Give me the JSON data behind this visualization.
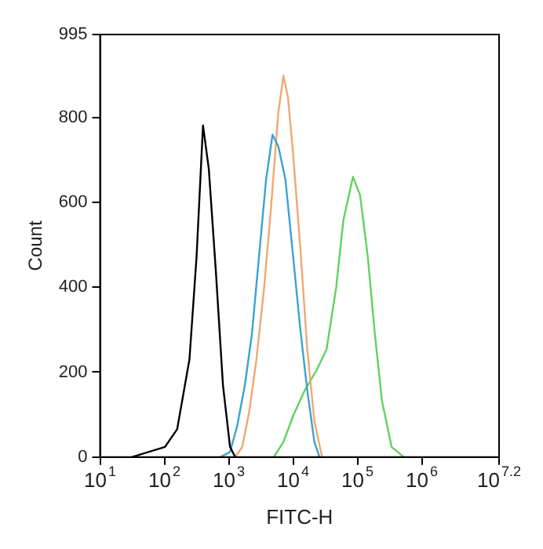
{
  "chart_data": {
    "type": "line",
    "xlabel": "FITC-H",
    "ylabel": "Count",
    "log": "x",
    "grid": false,
    "legend": false,
    "marker": "none",
    "line_style": "solid",
    "xlim": [
      10,
      15848932
    ],
    "ylim": [
      0,
      995
    ],
    "xticks": [
      {
        "value": 10,
        "label": "10$^{1}$"
      },
      {
        "value": 100,
        "label": "10$^{2}$"
      },
      {
        "value": 1000,
        "label": "10$^{3}$"
      },
      {
        "value": 10000,
        "label": "10$^{4}$"
      },
      {
        "value": 100000,
        "label": "10$^{5}$"
      },
      {
        "value": 1000000,
        "label": "10$^{6}$"
      },
      {
        "value": 15848932,
        "label": "10$^{7.2}$"
      }
    ],
    "yticks": [
      0,
      200,
      400,
      600,
      800,
      995
    ],
    "series": [
      {
        "color": "#000000",
        "x": [
          31,
          102,
          158,
          245,
          316,
          398,
          490,
          631,
          813,
          1047,
          1259
        ],
        "values": [
          0,
          24,
          66,
          230,
          472,
          781,
          678,
          436,
          169,
          24,
          0
        ]
      },
      {
        "color": "#3ba3d0",
        "x": [
          741,
          1047,
          1349,
          1778,
          2291,
          2951,
          3802,
          4786,
          5888,
          7586,
          10000,
          12882,
          16596,
          21380,
          25704
        ],
        "values": [
          0,
          12,
          73,
          169,
          290,
          472,
          654,
          759,
          732,
          654,
          472,
          303,
          157,
          36,
          0
        ]
      },
      {
        "color": "#f0a872",
        "x": [
          1259,
          1622,
          2089,
          2692,
          3548,
          4571,
          5888,
          7079,
          8318,
          10000,
          12882,
          16596,
          21380,
          28184
        ],
        "values": [
          0,
          24,
          109,
          230,
          400,
          593,
          811,
          898,
          847,
          714,
          496,
          254,
          85,
          0
        ]
      },
      {
        "color": "#5fd35f",
        "x": [
          5012,
          7079,
          10000,
          15136,
          23442,
          33113,
          46774,
          60256,
          85114,
          109648,
          144544,
          186209,
          239883,
          338844,
          524807
        ],
        "values": [
          0,
          36,
          97,
          157,
          206,
          254,
          400,
          557,
          660,
          617,
          472,
          290,
          133,
          24,
          0
        ]
      }
    ]
  }
}
